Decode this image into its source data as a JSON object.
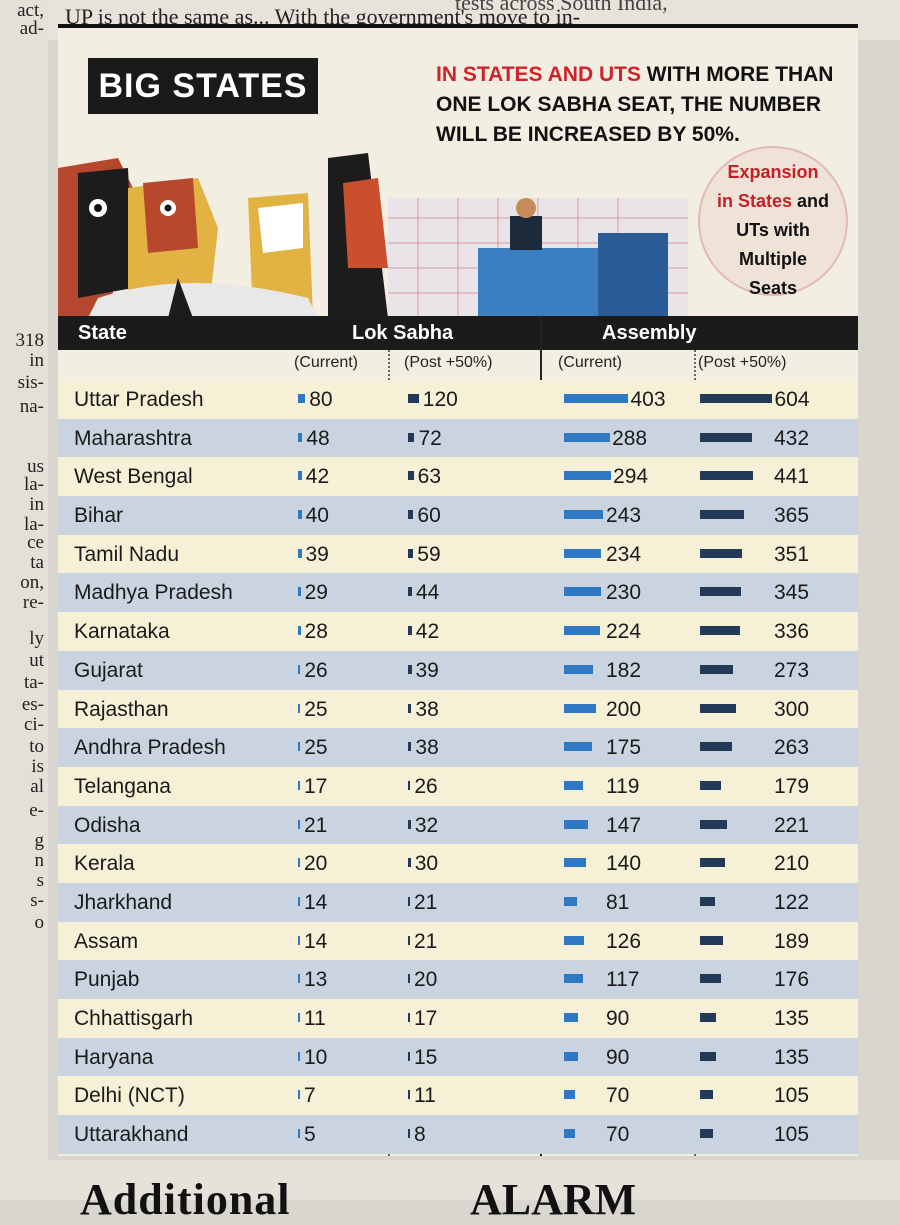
{
  "page": {
    "top_text_left": "UP is not the same as... With the government's move to in-",
    "top_text_right": "tests across South India,",
    "left_column_fragments": [
      "act,",
      "ad-",
      "318",
      "in",
      "sis-",
      "na-",
      "us",
      "la-",
      "in",
      "la-",
      "ce",
      "ta",
      "on,",
      "re-",
      "ly",
      "ut",
      "ta-",
      "es-",
      "ci-",
      "to",
      "is",
      "al",
      "e-",
      "g",
      "n",
      "s",
      "s-",
      "o"
    ],
    "bottom_heading_left": "Additional",
    "bottom_heading_right": "ALARM"
  },
  "graphic": {
    "title": "BIG STATES",
    "headline_red": "IN STATES AND UTS",
    "headline_rest": "WITH MORE THAN ONE LOK SABHA SEAT, THE NUMBER WILL BE INCREASED BY 50%.",
    "badge_red_1": "Expansion",
    "badge_red_2": "in States",
    "badge_rest_1": "and",
    "badge_rest_2": "UTs with",
    "badge_rest_3": "Multiple",
    "badge_rest_4": "Seats",
    "colors": {
      "current_bar": "#2f79c4",
      "post_bar": "#223a58",
      "accent_red": "#d0222a"
    }
  },
  "table": {
    "col_state": "State",
    "col_lok_sabha": "Lok Sabha",
    "col_assembly": "Assembly",
    "sub_current": "(Current)",
    "sub_post": "(Post +50%)"
  },
  "chart_data": {
    "type": "table",
    "title": "BIG STATES",
    "columns": [
      "State",
      "Lok Sabha (Current)",
      "Lok Sabha (Post +50%)",
      "Assembly (Current)",
      "Assembly (Post +50%)"
    ],
    "rows": [
      {
        "state": "Uttar Pradesh",
        "ls_current": 80,
        "ls_post": 120,
        "as_current": 403,
        "as_post": 604
      },
      {
        "state": "Maharashtra",
        "ls_current": 48,
        "ls_post": 72,
        "as_current": 288,
        "as_post": 432
      },
      {
        "state": "West Bengal",
        "ls_current": 42,
        "ls_post": 63,
        "as_current": 294,
        "as_post": 441
      },
      {
        "state": "Bihar",
        "ls_current": 40,
        "ls_post": 60,
        "as_current": 243,
        "as_post": 365
      },
      {
        "state": "Tamil Nadu",
        "ls_current": 39,
        "ls_post": 59,
        "as_current": 234,
        "as_post": 351
      },
      {
        "state": "Madhya Pradesh",
        "ls_current": 29,
        "ls_post": 44,
        "as_current": 230,
        "as_post": 345
      },
      {
        "state": "Karnataka",
        "ls_current": 28,
        "ls_post": 42,
        "as_current": 224,
        "as_post": 336
      },
      {
        "state": "Gujarat",
        "ls_current": 26,
        "ls_post": 39,
        "as_current": 182,
        "as_post": 273
      },
      {
        "state": "Rajasthan",
        "ls_current": 25,
        "ls_post": 38,
        "as_current": 200,
        "as_post": 300
      },
      {
        "state": "Andhra Pradesh",
        "ls_current": 25,
        "ls_post": 38,
        "as_current": 175,
        "as_post": 263
      },
      {
        "state": "Telangana",
        "ls_current": 17,
        "ls_post": 26,
        "as_current": 119,
        "as_post": 179
      },
      {
        "state": "Odisha",
        "ls_current": 21,
        "ls_post": 32,
        "as_current": 147,
        "as_post": 221
      },
      {
        "state": "Kerala",
        "ls_current": 20,
        "ls_post": 30,
        "as_current": 140,
        "as_post": 210
      },
      {
        "state": "Jharkhand",
        "ls_current": 14,
        "ls_post": 21,
        "as_current": 81,
        "as_post": 122
      },
      {
        "state": "Assam",
        "ls_current": 14,
        "ls_post": 21,
        "as_current": 126,
        "as_post": 189
      },
      {
        "state": "Punjab",
        "ls_current": 13,
        "ls_post": 20,
        "as_current": 117,
        "as_post": 176
      },
      {
        "state": "Chhattisgarh",
        "ls_current": 11,
        "ls_post": 17,
        "as_current": 90,
        "as_post": 135
      },
      {
        "state": "Haryana",
        "ls_current": 10,
        "ls_post": 15,
        "as_current": 90,
        "as_post": 135
      },
      {
        "state": "Delhi (NCT)",
        "ls_current": 7,
        "ls_post": 11,
        "as_current": 70,
        "as_post": 105
      },
      {
        "state": "Uttarakhand",
        "ls_current": 5,
        "ls_post": 8,
        "as_current": 70,
        "as_post": 105
      }
    ]
  }
}
